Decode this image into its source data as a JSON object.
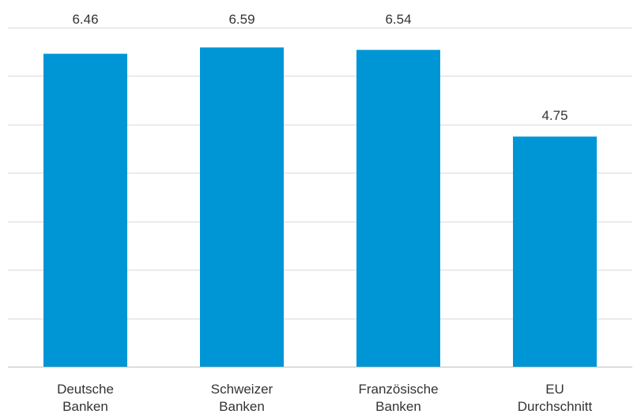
{
  "chart_data": {
    "type": "bar",
    "categories": [
      [
        "Deutsche",
        "Banken"
      ],
      [
        "Schweizer",
        "Banken"
      ],
      [
        "Französische",
        "Banken"
      ],
      [
        "EU",
        "Durchschnitt"
      ]
    ],
    "values": [
      6.46,
      6.59,
      6.54,
      4.75
    ],
    "data_labels": [
      "6.46",
      "6.59",
      "6.54",
      "4.75"
    ],
    "title": "",
    "xlabel": "",
    "ylabel": "",
    "ylim": [
      0,
      7
    ],
    "y_gridlines": [
      0,
      1,
      2,
      3,
      4,
      5,
      6,
      7
    ],
    "y_tick_labels_visible": false,
    "grid": true,
    "legend": "none",
    "colors": {
      "bar": "#0096d6",
      "grid": "#d9d9d9",
      "text": "#333333"
    }
  }
}
